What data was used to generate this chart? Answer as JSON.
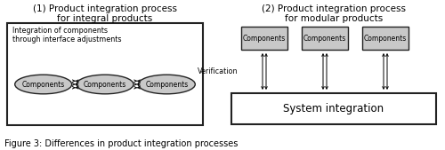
{
  "title1_line1": "(1) Product integration process",
  "title1_line2": "for integral products",
  "title2_line1": "(2) Product integration process",
  "title2_line2": "for modular products",
  "caption": "Figure 3: Differences in product integration processes",
  "integral_label": "Integration of components\nthrough interface adjustments",
  "components_label": "Components",
  "system_integration_label": "System integration",
  "verification_label": "Verification",
  "bg_color": "#ffffff",
  "box_color": "#c8c8c8",
  "box_edge": "#222222",
  "ellipse_color": "#c8c8c8",
  "title_fontsize": 7.5,
  "caption_fontsize": 7.0,
  "small_fontsize": 5.8,
  "comp_fontsize": 5.5
}
